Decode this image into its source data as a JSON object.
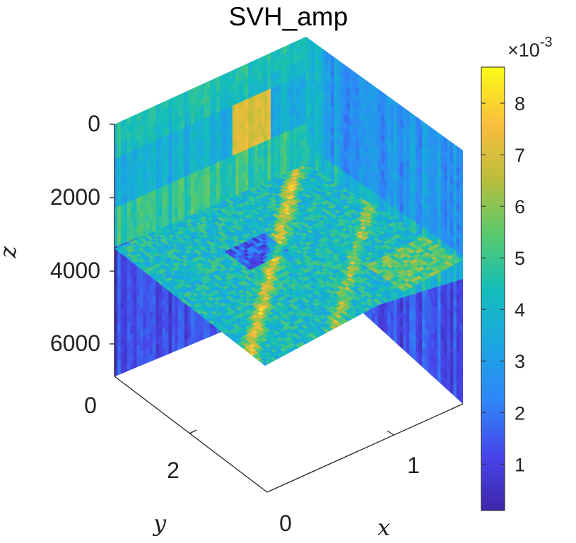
{
  "chart_data": {
    "type": "heatmap",
    "title": "SVH_amp",
    "xlabel": "x",
    "ylabel": "y",
    "zlabel": "z",
    "x_ticks": [
      "0",
      "1"
    ],
    "y_ticks": [
      "0",
      "2"
    ],
    "z_ticks": [
      "0",
      "2000",
      "4000",
      "6000"
    ],
    "z_reversed": true,
    "colorbar": {
      "multiplier": "×10",
      "exponent": "-3",
      "ticks": [
        "1",
        "2",
        "3",
        "4",
        "5",
        "6",
        "7",
        "8"
      ],
      "range": [
        0.0001,
        0.0087
      ],
      "colormap": "parula"
    },
    "slices": [
      {
        "name": "back-wall-yz",
        "plane": "x=0",
        "dominant_range": [
          0.002,
          0.0075
        ]
      },
      {
        "name": "side-wall-xz",
        "plane": "y=0",
        "dominant_range": [
          0.001,
          0.004
        ]
      },
      {
        "name": "horizontal-slice",
        "plane": "z≈3500",
        "dominant_range": [
          0.0015,
          0.0082
        ]
      }
    ]
  }
}
